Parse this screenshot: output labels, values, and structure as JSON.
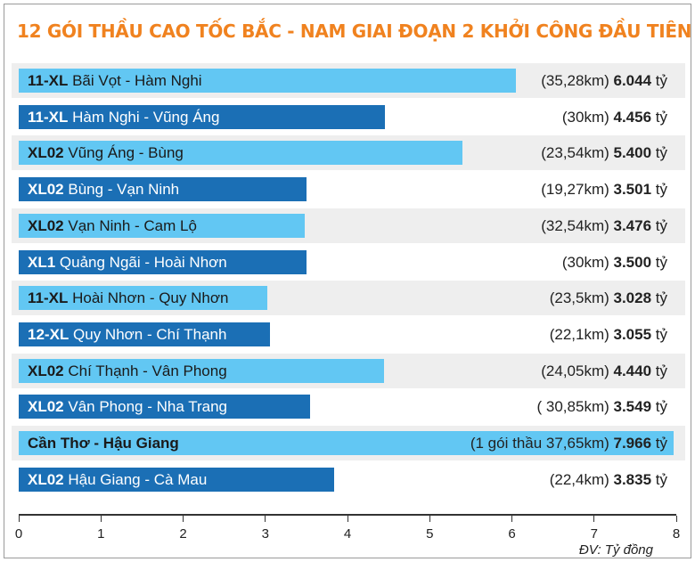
{
  "chart_data": {
    "type": "bar",
    "orientation": "horizontal",
    "title": "12 GÓI THẦU CAO TỐC BẮC - NAM GIAI ĐOẠN 2 KHỞI CÔNG ĐẦU TIÊN",
    "unit_note": "ĐV: Tỷ đồng",
    "xlim": [
      0,
      8
    ],
    "x_ticks": [
      "0",
      "1",
      "2",
      "3",
      "4",
      "5",
      "6",
      "7",
      "8"
    ],
    "grid": false,
    "colors": {
      "light": "#62c7f3",
      "dark": "#1b6fb5",
      "row_alt": "#eeeeee"
    },
    "bars": [
      {
        "code": "11-XL",
        "route": "Bãi Vọt - Hàm Nghi",
        "length": "(35,28km)",
        "amount": "6.044",
        "unit": "tỷ",
        "value": 6.044,
        "style": "light"
      },
      {
        "code": "11-XL",
        "route": "Hàm Nghi - Vũng Áng",
        "length": "(30km)",
        "amount": "4.456",
        "unit": "tỷ",
        "value": 4.456,
        "style": "dark"
      },
      {
        "code": "XL02",
        "route": "Vũng Áng - Bùng",
        "length": "(23,54km)",
        "amount": "5.400",
        "unit": "tỷ",
        "value": 5.4,
        "style": "light"
      },
      {
        "code": "XL02",
        "route": "Bùng - Vạn Ninh",
        "length": "(19,27km)",
        "amount": "3.501",
        "unit": "tỷ",
        "value": 3.501,
        "style": "dark"
      },
      {
        "code": "XL02",
        "route": "Vạn Ninh - Cam Lộ",
        "length": "(32,54km)",
        "amount": "3.476",
        "unit": "tỷ",
        "value": 3.476,
        "style": "light"
      },
      {
        "code": "XL1",
        "route": "Quảng Ngãi - Hoài Nhơn",
        "length": "(30km)",
        "amount": "3.500",
        "unit": "tỷ",
        "value": 3.5,
        "style": "dark"
      },
      {
        "code": "11-XL",
        "route": "Hoài Nhơn - Quy Nhơn",
        "length": "(23,5km)",
        "amount": "3.028",
        "unit": "tỷ",
        "value": 3.028,
        "style": "light"
      },
      {
        "code": "12-XL",
        "route": "Quy Nhơn - Chí Thạnh",
        "length": "(22,1km)",
        "amount": "3.055",
        "unit": "tỷ",
        "value": 3.055,
        "style": "dark"
      },
      {
        "code": "XL02",
        "route": "Chí Thạnh - Vân Phong",
        "length": "(24,05km)",
        "amount": "4.440",
        "unit": "tỷ",
        "value": 4.44,
        "style": "light"
      },
      {
        "code": "XL02",
        "route": "Vân Phong - Nha Trang",
        "length": "( 30,85km)",
        "amount": "3.549",
        "unit": "tỷ",
        "value": 3.549,
        "style": "dark"
      },
      {
        "code": "Cần Thơ - Hậu Giang",
        "route": "",
        "length": "(1 gói thầu 37,65km)",
        "amount": "7.966",
        "unit": "tỷ",
        "value": 7.966,
        "style": "light"
      },
      {
        "code": "XL02",
        "route": "Hậu Giang - Cà Mau",
        "length": "(22,4km)",
        "amount": "3.835",
        "unit": "tỷ",
        "value": 3.835,
        "style": "dark"
      }
    ]
  }
}
